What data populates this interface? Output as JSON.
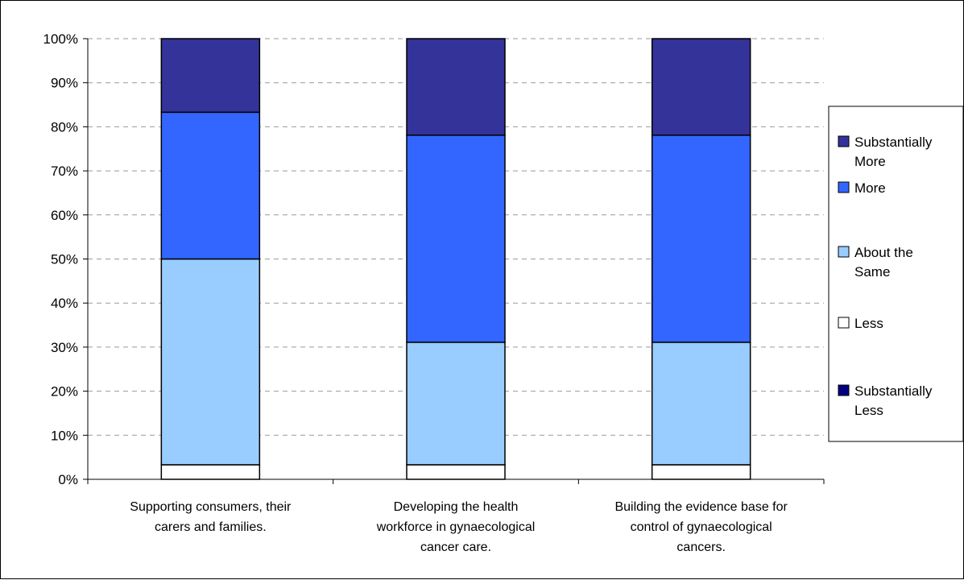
{
  "chart_data": {
    "type": "bar",
    "stacked": true,
    "percent_stacked": true,
    "title": "",
    "xlabel": "",
    "ylabel": "",
    "ylim": [
      0,
      100
    ],
    "yticks": [
      "0%",
      "10%",
      "20%",
      "30%",
      "40%",
      "50%",
      "60%",
      "70%",
      "80%",
      "90%",
      "100%"
    ],
    "grid": true,
    "legend_position": "right",
    "categories": [
      [
        "Supporting consumers, their",
        "carers and families."
      ],
      [
        "Developing the health",
        "workforce in gynaecological",
        "cancer care."
      ],
      [
        "Building the evidence base for",
        "control of gynaecological",
        "cancers."
      ]
    ],
    "series": [
      {
        "name": "Substantially Less",
        "legend_lines": [
          "Substantially",
          "Less"
        ],
        "color": "#000080",
        "values": [
          0,
          0,
          0
        ]
      },
      {
        "name": "Less",
        "legend_lines": [
          "Less"
        ],
        "color": "#ffffff",
        "values": [
          3.3,
          3.3,
          3.3
        ]
      },
      {
        "name": "About the Same",
        "legend_lines": [
          "About the",
          "Same"
        ],
        "color": "#99ccff",
        "values": [
          46.7,
          27.8,
          27.8
        ]
      },
      {
        "name": "More",
        "legend_lines": [
          "More"
        ],
        "color": "#3366ff",
        "values": [
          33.3,
          47.0,
          47.0
        ]
      },
      {
        "name": "Substantially More",
        "legend_lines": [
          "Substantially",
          "More"
        ],
        "color": "#333399",
        "values": [
          16.7,
          21.9,
          21.9
        ]
      }
    ]
  }
}
